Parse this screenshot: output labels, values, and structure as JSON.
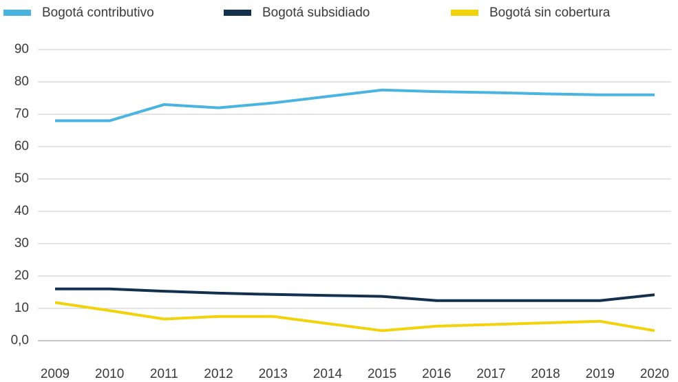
{
  "chart_data": {
    "type": "line",
    "categories": [
      "2009",
      "2010",
      "2011",
      "2012",
      "2013",
      "2014",
      "2015",
      "2016",
      "2017",
      "2018",
      "2019",
      "2020"
    ],
    "series": [
      {
        "name": "Bogotá contributivo",
        "color": "#4ab4e0",
        "values": [
          68,
          68,
          73,
          72,
          73.5,
          75.5,
          77.5,
          77,
          76.7,
          76.3,
          76,
          76
        ]
      },
      {
        "name": "Bogotá subsidiado",
        "color": "#14304f",
        "values": [
          16,
          16,
          15.3,
          14.7,
          14.3,
          14,
          13.7,
          12.4,
          12.4,
          12.4,
          12.4,
          14.2
        ]
      },
      {
        "name": "Bogotá sin cobertura",
        "color": "#f2d20a",
        "values": [
          11.8,
          9.3,
          6.7,
          7.5,
          7.5,
          5.3,
          3.1,
          4.5,
          5,
          5.5,
          6,
          3.1
        ]
      }
    ],
    "ylim": [
      0,
      90
    ],
    "yticks": [
      {
        "value": 0,
        "label": "0,0"
      },
      10,
      20,
      30,
      40,
      50,
      60,
      70,
      80,
      90
    ],
    "grid": true,
    "legend": "top"
  }
}
